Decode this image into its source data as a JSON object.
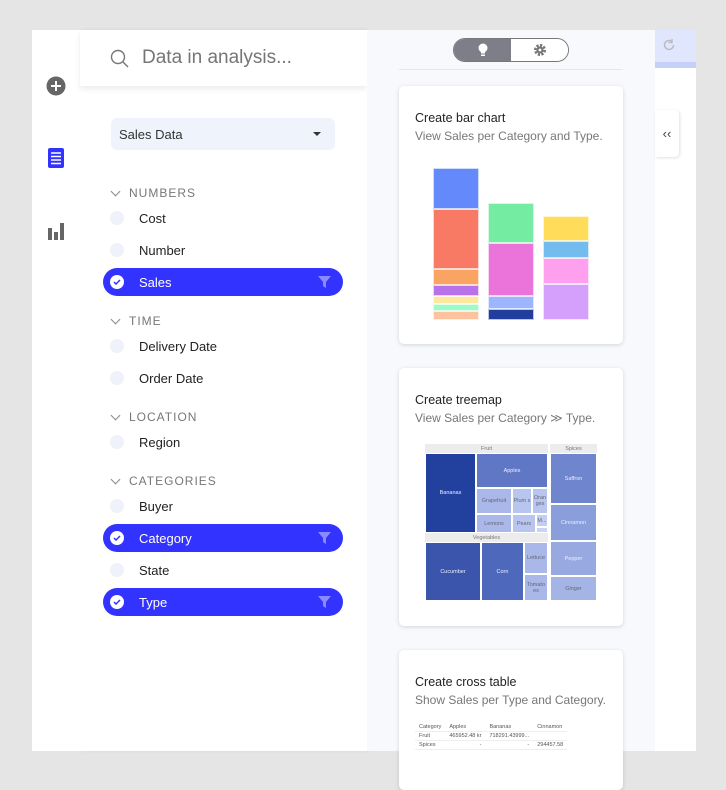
{
  "search": {
    "placeholder": "Data in analysis..."
  },
  "source": {
    "selected": "Sales Data"
  },
  "groups": [
    {
      "label": "NUMBERS",
      "items": [
        {
          "label": "Cost",
          "selected": false
        },
        {
          "label": "Number",
          "selected": false
        },
        {
          "label": "Sales",
          "selected": true
        }
      ]
    },
    {
      "label": "TIME",
      "items": [
        {
          "label": "Delivery Date",
          "selected": false
        },
        {
          "label": "Order Date",
          "selected": false
        }
      ]
    },
    {
      "label": "LOCATION",
      "items": [
        {
          "label": "Region",
          "selected": false
        }
      ]
    },
    {
      "label": "CATEGORIES",
      "items": [
        {
          "label": "Buyer",
          "selected": false
        },
        {
          "label": "Category",
          "selected": true
        },
        {
          "label": "State",
          "selected": false
        },
        {
          "label": "Type",
          "selected": true
        }
      ]
    }
  ],
  "accent": "#3333ff",
  "cards": {
    "bar": {
      "title": "Create bar chart",
      "subtitle": "View Sales per Category and Type."
    },
    "treemap": {
      "title": "Create treemap",
      "subtitle": "View Sales per Category ≫ Type.",
      "headers": {
        "fruit": "Fruit",
        "vegetables": "Vegetables",
        "spices": "Spices"
      },
      "cells": {
        "bananas": "Bananas",
        "apples": "Apples",
        "grapefruit": "Grapefruit",
        "plums": "Plum s",
        "oranges": "Oran ges",
        "lemons": "Lemons",
        "pears": "Pears",
        "m": "M...",
        "cucumber": "Cucumber",
        "corn": "Corn",
        "lettuce": "Lettuce",
        "tomatoes": "Tomato es",
        "saffron": "Saffron",
        "cinnamon": "Cinnamon",
        "pepper": "Pepper",
        "ginger": "Ginger"
      }
    },
    "crosstable": {
      "title": "Create cross table",
      "subtitle": "Show Sales per Type and Category.",
      "headers": [
        "Category",
        "Apples",
        "Bananas",
        "Cinnamon"
      ],
      "rows": [
        [
          "Fruit",
          "465952.48 kr",
          "718291.43999...",
          ""
        ],
        [
          "Spices",
          "-",
          "-",
          "294457.58"
        ]
      ]
    }
  },
  "chart_data": {
    "type": "bar",
    "stacked": true,
    "columns": [
      {
        "segments": [
          {
            "value": 40,
            "color": "#6389fa"
          },
          {
            "value": 60,
            "color": "#f97a64"
          },
          {
            "value": 15,
            "color": "#f9a462"
          },
          {
            "value": 11,
            "color": "#b873ea"
          },
          {
            "value": 8,
            "color": "#ffe7a0"
          },
          {
            "value": 7,
            "color": "#9cfcc6"
          },
          {
            "value": 9,
            "color": "#fdc39e"
          }
        ]
      },
      {
        "segments": [
          {
            "value": 39,
            "color": "#74eca2"
          },
          {
            "value": 52,
            "color": "#ea74da"
          },
          {
            "value": 13,
            "color": "#9db5ff"
          },
          {
            "value": 11,
            "color": "#213e9f"
          }
        ]
      },
      {
        "segments": [
          {
            "value": 25,
            "color": "#ffdc5a"
          },
          {
            "value": 17,
            "color": "#74bbee"
          },
          {
            "value": 25,
            "color": "#ffa0ee"
          },
          {
            "value": 36,
            "color": "#d5a0fb"
          }
        ]
      }
    ]
  }
}
